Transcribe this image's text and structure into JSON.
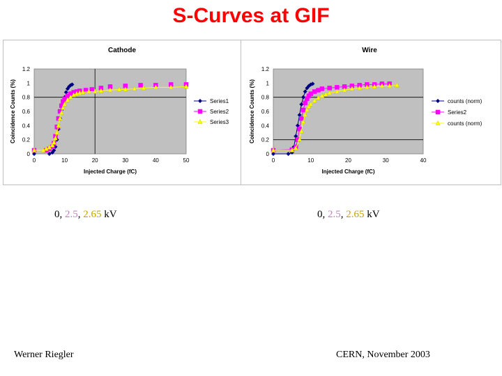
{
  "slide": {
    "title": "S-Curves at GIF",
    "footer_left": "Werner Riegler",
    "footer_right": "CERN, November 2003"
  },
  "captions": [
    {
      "v0": "0",
      "sep1": ", ",
      "v1": "2.5",
      "sep2": ", ",
      "v2": "2.65",
      "unit": " kV"
    },
    {
      "v0": "0",
      "sep1": ", ",
      "v1": "2.5",
      "sep2": ", ",
      "v2": "2.65",
      "unit": " kV"
    }
  ],
  "chart_data": [
    {
      "type": "scatter",
      "title": "Cathode",
      "xlabel": "Injected Charge (fC)",
      "ylabel": "Coincidence Counts (%)",
      "xlim": [
        0,
        50
      ],
      "ylim": [
        0,
        1.2
      ],
      "xticks": [
        0,
        10,
        20,
        30,
        40,
        50
      ],
      "yticks": [
        0,
        0.2,
        0.4,
        0.6,
        0.8,
        1,
        1.2
      ],
      "ytick_labels": [
        "0",
        "0.2",
        "0.4",
        "0.6",
        "0.8",
        "1",
        "1.2"
      ],
      "grid": {
        "h": [
          0.8
        ],
        "v": [
          20
        ]
      },
      "legend_position": "right",
      "series": [
        {
          "name": "Series1",
          "color": "#000080",
          "marker": "diamond",
          "line": false,
          "x": [
            0,
            5,
            6,
            6.5,
            7,
            7.5,
            8,
            8.5,
            9,
            9.5,
            10,
            10.5,
            11,
            11.5,
            12,
            12.5
          ],
          "y": [
            0,
            0,
            0.02,
            0.05,
            0.1,
            0.2,
            0.35,
            0.5,
            0.62,
            0.72,
            0.8,
            0.87,
            0.92,
            0.95,
            0.97,
            0.98
          ]
        },
        {
          "name": "Series2",
          "color": "#ff00ff",
          "marker": "square",
          "line": false,
          "x": [
            0,
            4,
            5,
            6,
            6.5,
            7,
            7.5,
            8,
            8.5,
            9,
            9.5,
            10,
            11,
            12,
            13,
            14,
            15,
            17,
            19,
            22,
            25,
            30,
            35,
            40,
            45,
            50
          ],
          "y": [
            0.05,
            0.05,
            0.07,
            0.1,
            0.15,
            0.25,
            0.38,
            0.5,
            0.6,
            0.68,
            0.74,
            0.78,
            0.82,
            0.85,
            0.87,
            0.88,
            0.89,
            0.9,
            0.91,
            0.93,
            0.95,
            0.96,
            0.97,
            0.97,
            0.98,
            0.98
          ]
        },
        {
          "name": "Series3",
          "color": "#ffff00",
          "marker": "triangle",
          "line": true,
          "x": [
            0,
            3,
            4,
            5,
            6,
            6.5,
            7,
            7.5,
            8,
            8.5,
            9,
            9.5,
            10,
            11,
            12,
            13,
            14,
            15,
            16,
            18,
            20,
            22,
            25,
            28,
            30,
            33,
            36,
            40,
            45,
            50
          ],
          "y": [
            0.05,
            0.05,
            0.07,
            0.09,
            0.12,
            0.16,
            0.22,
            0.3,
            0.4,
            0.5,
            0.58,
            0.65,
            0.7,
            0.76,
            0.8,
            0.83,
            0.85,
            0.86,
            0.87,
            0.88,
            0.88,
            0.89,
            0.9,
            0.91,
            0.91,
            0.92,
            0.93,
            0.94,
            0.94,
            0.95
          ]
        }
      ]
    },
    {
      "type": "scatter",
      "title": "Wire",
      "xlabel": "Injected Charge (fC)",
      "ylabel": "Coincidence Counts (%)",
      "xlim": [
        0,
        40
      ],
      "ylim": [
        0,
        1.2
      ],
      "xticks": [
        0,
        10,
        20,
        30,
        40
      ],
      "yticks": [
        0,
        0.2,
        0.4,
        0.6,
        0.8,
        1,
        1.2
      ],
      "ytick_labels": [
        "0",
        "0.2",
        "0.4",
        "0.6",
        "0.8",
        "1",
        "1.2"
      ],
      "grid": {
        "h": [
          0.2,
          0.8
        ],
        "v": []
      },
      "legend_position": "right",
      "series": [
        {
          "name": "counts (norm)",
          "color": "#000080",
          "marker": "diamond",
          "line": true,
          "x": [
            0,
            4,
            5,
            5.5,
            6,
            6.5,
            7,
            7.5,
            8,
            8.5,
            9,
            9.5,
            10,
            10.5
          ],
          "y": [
            0,
            0,
            0.02,
            0.1,
            0.25,
            0.4,
            0.55,
            0.7,
            0.8,
            0.88,
            0.93,
            0.96,
            0.98,
            0.99
          ]
        },
        {
          "name": "Series2",
          "color": "#ff00ff",
          "marker": "square",
          "line": true,
          "x": [
            0,
            5,
            6,
            6.5,
            7,
            7.5,
            8,
            8.5,
            9,
            9.5,
            10,
            11,
            12,
            13,
            15,
            17,
            19,
            21,
            23,
            25,
            27,
            29,
            31
          ],
          "y": [
            0.05,
            0.06,
            0.1,
            0.2,
            0.35,
            0.5,
            0.62,
            0.72,
            0.78,
            0.82,
            0.85,
            0.88,
            0.9,
            0.92,
            0.93,
            0.94,
            0.95,
            0.96,
            0.97,
            0.98,
            0.98,
            0.99,
            0.99
          ]
        },
        {
          "name": "counts (norm)",
          "color": "#ffff00",
          "marker": "triangle",
          "line": true,
          "x": [
            0,
            5,
            6,
            7,
            7.5,
            8,
            8.5,
            9,
            9.5,
            10,
            11,
            12,
            13,
            14,
            15,
            17,
            19,
            21,
            23,
            25,
            27,
            29,
            31,
            33
          ],
          "y": [
            0.05,
            0.05,
            0.08,
            0.2,
            0.32,
            0.45,
            0.55,
            0.62,
            0.67,
            0.7,
            0.75,
            0.79,
            0.82,
            0.84,
            0.86,
            0.88,
            0.9,
            0.92,
            0.93,
            0.94,
            0.95,
            0.96,
            0.96,
            0.97
          ]
        }
      ]
    }
  ]
}
